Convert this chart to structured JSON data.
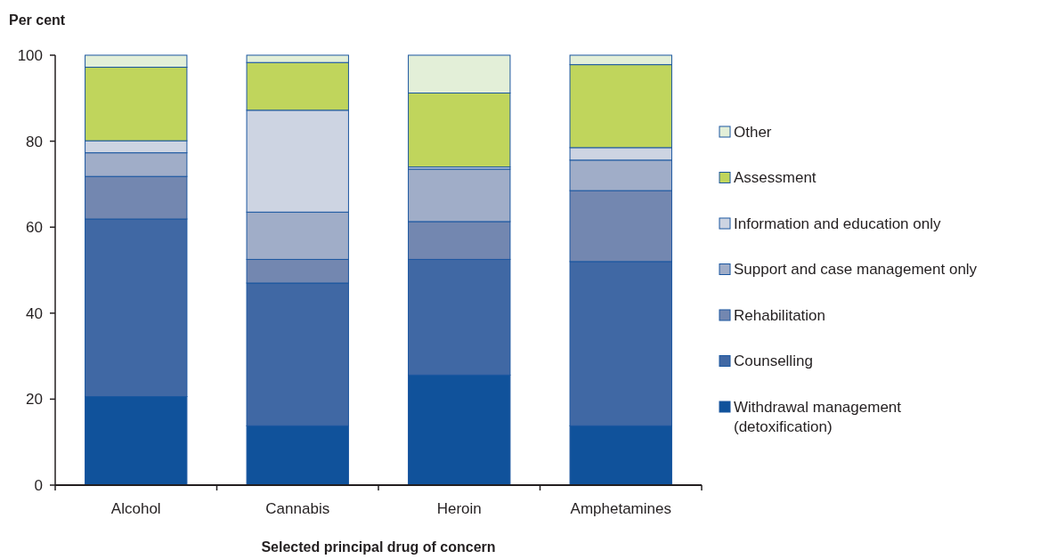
{
  "chart_data": {
    "type": "bar",
    "stacked": true,
    "ylabel": "Per cent",
    "xlabel": "Selected principal drug of concern",
    "categories": [
      "Alcohol",
      "Cannabis",
      "Heroin",
      "Amphetamines"
    ],
    "series": [
      {
        "name": "Withdrawal management (detoxification)",
        "color": "#10529b",
        "values": [
          20.6,
          13.8,
          25.6,
          13.8
        ]
      },
      {
        "name": "Counselling",
        "color": "#4068a4",
        "values": [
          41.3,
          33.2,
          26.9,
          38.2
        ]
      },
      {
        "name": "Rehabilitation",
        "color": "#7387b0",
        "values": [
          9.9,
          5.5,
          8.8,
          16.5
        ]
      },
      {
        "name": "Support and case management only",
        "color": "#a0adc8",
        "values": [
          5.5,
          11.0,
          12.2,
          7.1
        ]
      },
      {
        "name": "Information and education only",
        "color": "#cdd4e2",
        "values": [
          2.8,
          23.7,
          0.5,
          2.9
        ]
      },
      {
        "name": "Assessment",
        "color": "#c0d55c",
        "values": [
          17.1,
          11.1,
          17.2,
          19.3
        ]
      },
      {
        "name": "Other",
        "color": "#e3efd8",
        "values": [
          2.8,
          1.7,
          8.8,
          2.2
        ]
      }
    ],
    "ylim": [
      0,
      100
    ],
    "yticks": [
      0,
      20,
      40,
      60,
      80,
      100
    ],
    "grid": false,
    "legend": "right"
  }
}
